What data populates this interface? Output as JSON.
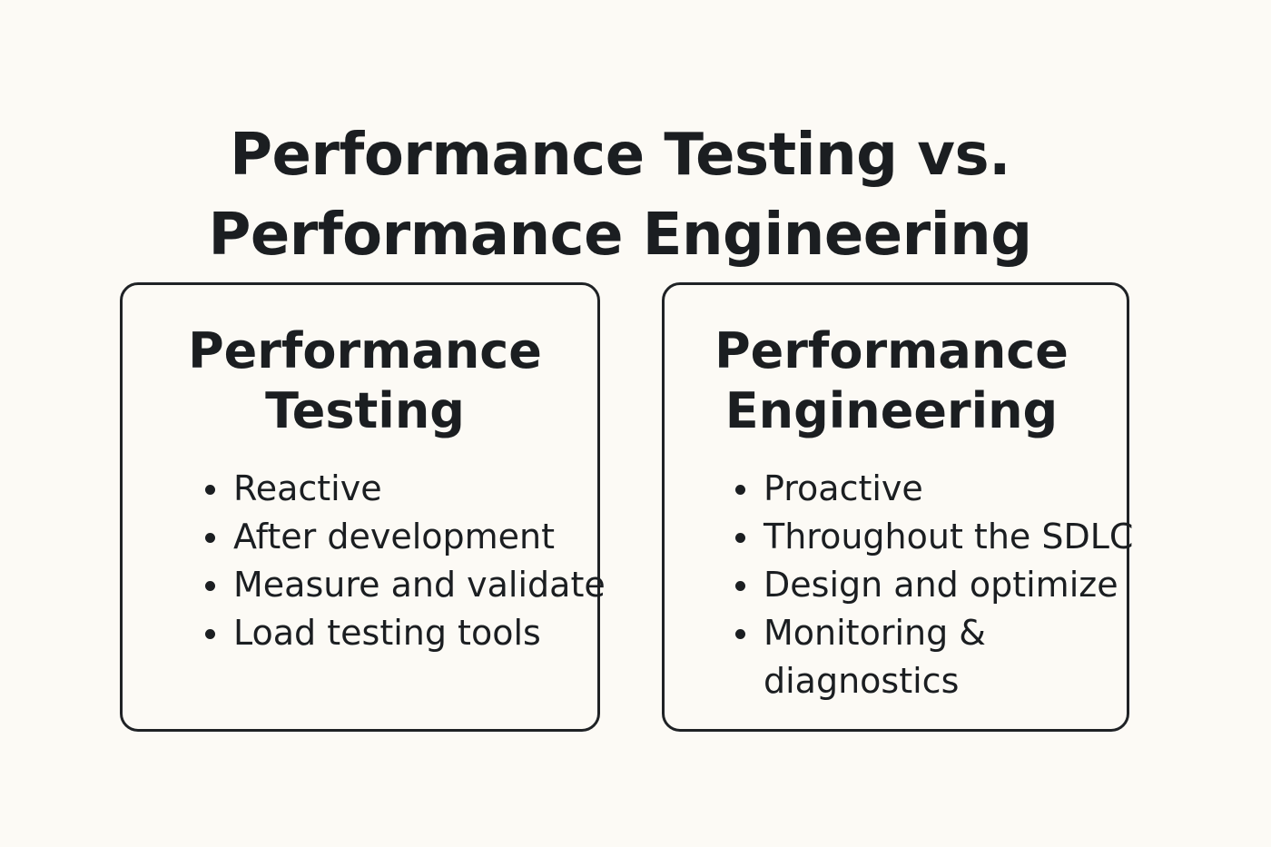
{
  "title": {
    "line1": "Performance Testing vs.",
    "line2": "Performance Engineering"
  },
  "cards": [
    {
      "title_line1": "Performance",
      "title_line2": "Testing",
      "items": [
        "Reactive",
        "After development",
        "Measure and validate",
        "Load testing tools"
      ]
    },
    {
      "title_line1": "Performance",
      "title_line2": "Engineering",
      "items": [
        "Proactive",
        "Throughout the SDLC",
        "Design and optimize",
        "Monitoring & diagnostics"
      ]
    }
  ],
  "colors": {
    "background": "#fcfaf5",
    "text": "#1b1e21",
    "border": "#1f2225"
  }
}
